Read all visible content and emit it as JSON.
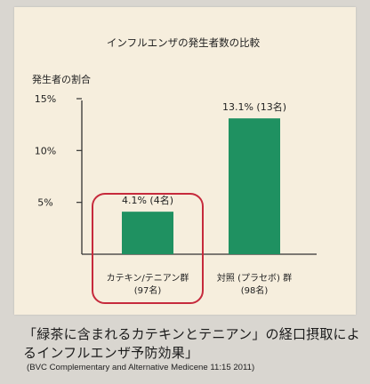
{
  "chart_data": {
    "type": "bar",
    "title": "インフルエンザの発生者数の比較",
    "ylabel": "発生者の割合",
    "ylim": [
      0,
      15
    ],
    "yticks": [
      "5%",
      "10%",
      "15%"
    ],
    "yticks_values": [
      5,
      10,
      15
    ],
    "categories": [
      "カテキン/テニアン群(97名)",
      "対照(プラセボ)群(98名)"
    ],
    "category_lines": [
      [
        "カテキン/テニアン群",
        "(97名)"
      ],
      [
        "対照 (プラセボ) 群",
        "(98名)"
      ]
    ],
    "values": [
      4.1,
      13.1
    ],
    "data_labels": [
      "4.1% (4名)",
      "13.1% (13名)"
    ],
    "bar_color": "#1f9161",
    "highlight": {
      "category_index": 0,
      "color": "#c62a3c"
    }
  },
  "caption": "「緑茶に含まれるカテキンとテニアン」の経口摂取によるインフルエンザ予防効果」",
  "citation": "(BVC   Complementary and Alternative Medicene 11:15   2011)"
}
